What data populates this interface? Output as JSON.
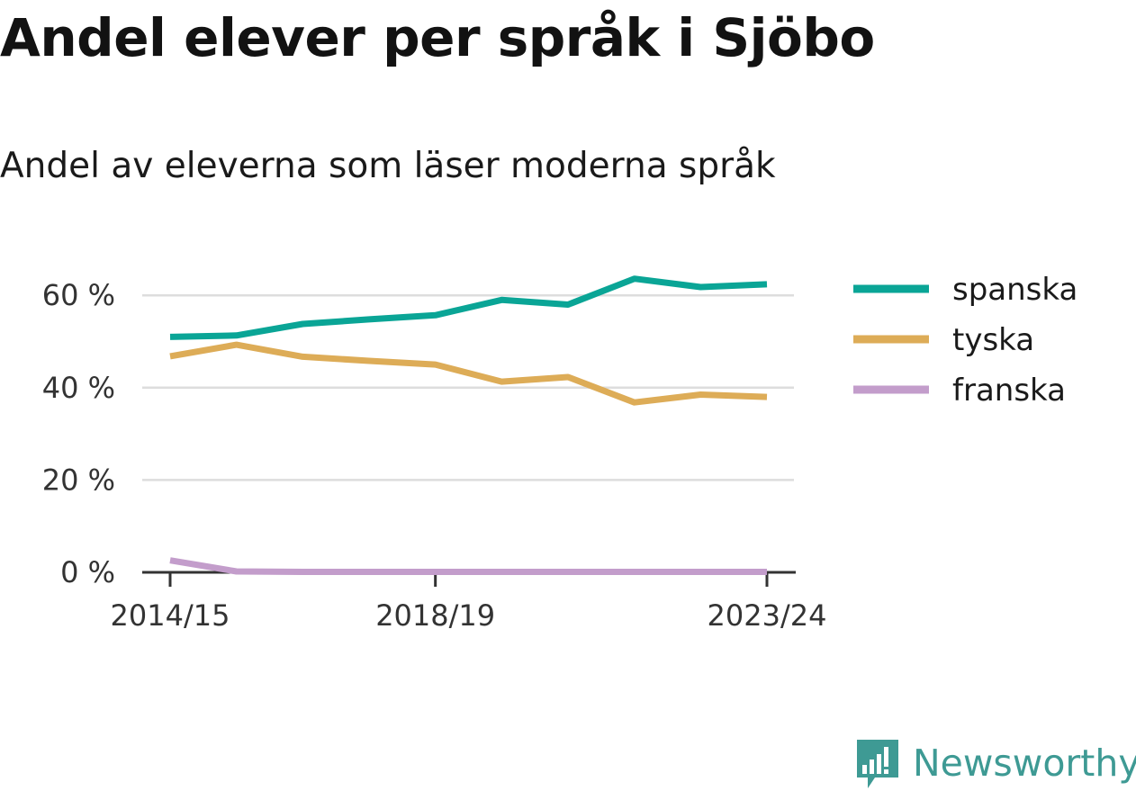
{
  "header": {
    "title": "Andel elever per språk i Sjöbo",
    "subtitle": "Andel av eleverna som läser moderna språk"
  },
  "brand": {
    "name": "Newsworthy",
    "icon": "newsworthy-logo-icon",
    "color": "#3e9a94"
  },
  "chart_data": {
    "type": "line",
    "x": [
      "2014/15",
      "2015/16",
      "2016/17",
      "2017/18",
      "2018/19",
      "2019/20",
      "2020/21",
      "2021/22",
      "2022/23",
      "2023/24"
    ],
    "x_tick_labels": [
      "2014/15",
      "2018/19",
      "2023/24"
    ],
    "y_tick_labels": [
      "0 %",
      "20 %",
      "40 %",
      "60 %"
    ],
    "y_ticks": [
      0,
      20,
      40,
      60
    ],
    "ylim": [
      0,
      70
    ],
    "grid": true,
    "legend_position": "right",
    "series": [
      {
        "name": "spanska",
        "color": "#0aa596",
        "values": [
          51.0,
          51.3,
          53.8,
          54.8,
          55.7,
          59.0,
          58.0,
          63.6,
          61.8,
          62.4
        ]
      },
      {
        "name": "tyska",
        "color": "#ddac57",
        "values": [
          46.8,
          49.3,
          46.7,
          45.8,
          45.0,
          41.3,
          42.3,
          36.8,
          38.5,
          38.0
        ]
      },
      {
        "name": "franska",
        "color": "#c39dcb",
        "values": [
          2.6,
          0.2,
          0.1,
          0.1,
          0.1,
          0.1,
          0.1,
          0.1,
          0.1,
          0.1
        ]
      }
    ]
  }
}
